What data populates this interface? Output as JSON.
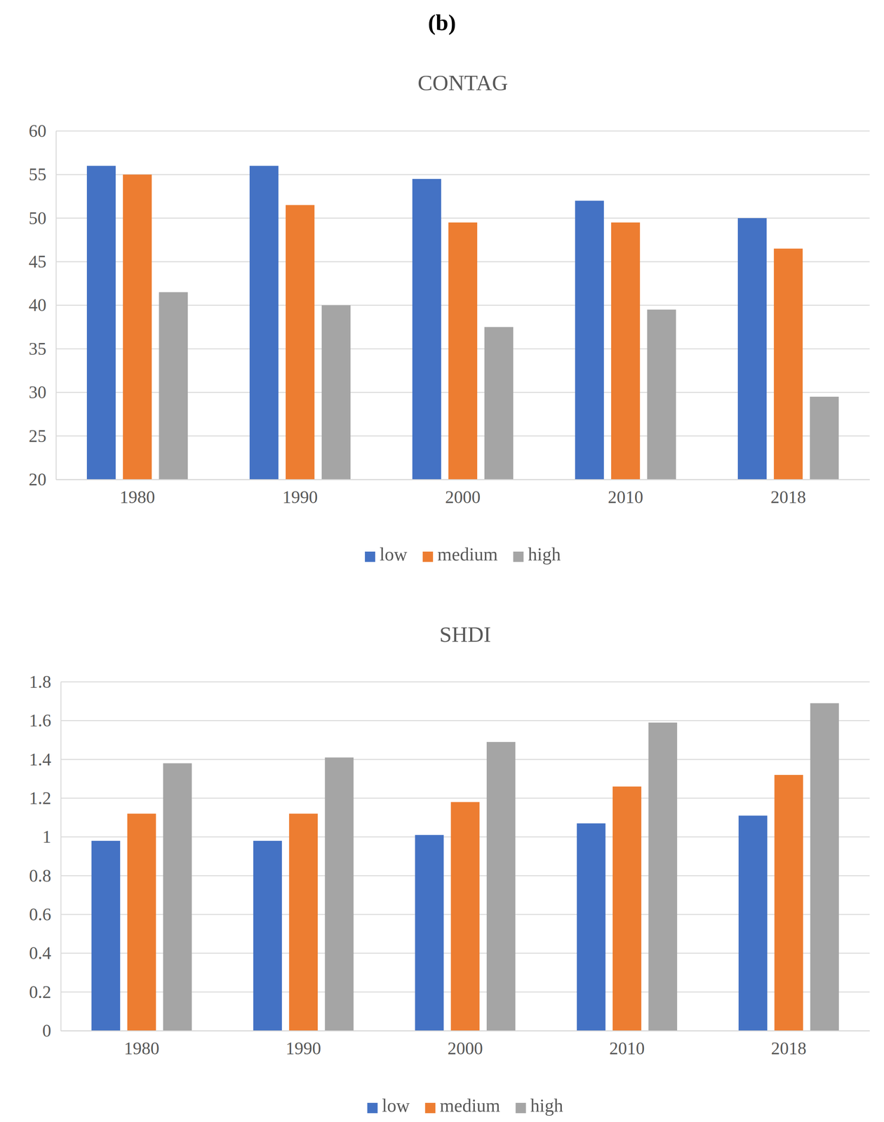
{
  "panel_label": "(b)",
  "chart_data": [
    {
      "type": "bar",
      "title": "CONTAG",
      "categories": [
        "1980",
        "1990",
        "2000",
        "2010",
        "2018"
      ],
      "series": [
        {
          "name": "low",
          "color": "#4472c4",
          "values": [
            56,
            56,
            54.5,
            52,
            50
          ]
        },
        {
          "name": "medium",
          "color": "#ed7d31",
          "values": [
            55,
            51.5,
            49.5,
            49.5,
            46.5
          ]
        },
        {
          "name": "high",
          "color": "#a5a5a5",
          "values": [
            41.5,
            40,
            37.5,
            39.5,
            29.5
          ]
        }
      ],
      "ylim": [
        20,
        60
      ],
      "yticks": [
        20,
        25,
        30,
        35,
        40,
        45,
        50,
        55,
        60
      ],
      "grid": true,
      "legend": "bottom"
    },
    {
      "type": "bar",
      "title": "SHDI",
      "categories": [
        "1980",
        "1990",
        "2000",
        "2010",
        "2018"
      ],
      "series": [
        {
          "name": "low",
          "color": "#4472c4",
          "values": [
            0.98,
            0.98,
            1.01,
            1.07,
            1.11
          ]
        },
        {
          "name": "medium",
          "color": "#ed7d31",
          "values": [
            1.12,
            1.12,
            1.18,
            1.26,
            1.32
          ]
        },
        {
          "name": "high",
          "color": "#a5a5a5",
          "values": [
            1.38,
            1.41,
            1.49,
            1.59,
            1.69
          ]
        }
      ],
      "ylim": [
        0,
        1.8
      ],
      "yticks": [
        0,
        0.2,
        0.4,
        0.6,
        0.8,
        1,
        1.2,
        1.4,
        1.6,
        1.8
      ],
      "grid": true,
      "legend": "bottom"
    }
  ]
}
